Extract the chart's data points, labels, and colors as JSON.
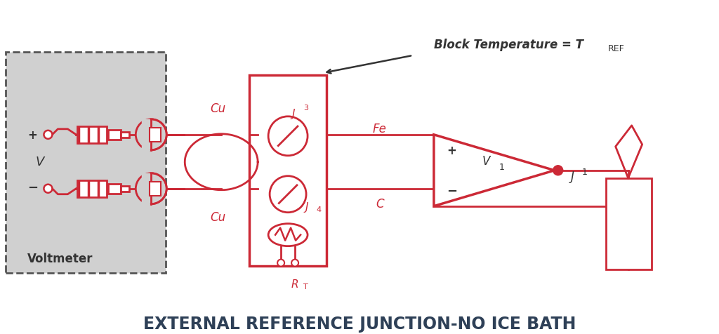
{
  "title": "EXTERNAL REFERENCE JUNCTION-NO ICE BATH",
  "title_color": "#2E4057",
  "title_fontsize": 17,
  "bg_color": "#ffffff",
  "red": "#CC2936",
  "gray_box_color": "#D0D0D0",
  "block_temp_text": "Block Temperature = T",
  "block_temp_sub": "REF",
  "label_cu_top": "Cu",
  "label_cu_bot": "Cu",
  "label_fe": "Fe",
  "label_c": "C",
  "label_j1": "J",
  "label_j1_sub": "1",
  "label_j3": "J",
  "label_j3_sub": "3",
  "label_j4": "J",
  "label_j4_sub": "4",
  "label_rt": "R",
  "label_rt_sub": "T",
  "label_v": "V",
  "label_v1": "V",
  "label_v1_sub": "1",
  "label_voltmeter": "Voltmeter",
  "plus_sign": "+",
  "minus_sign": "−"
}
